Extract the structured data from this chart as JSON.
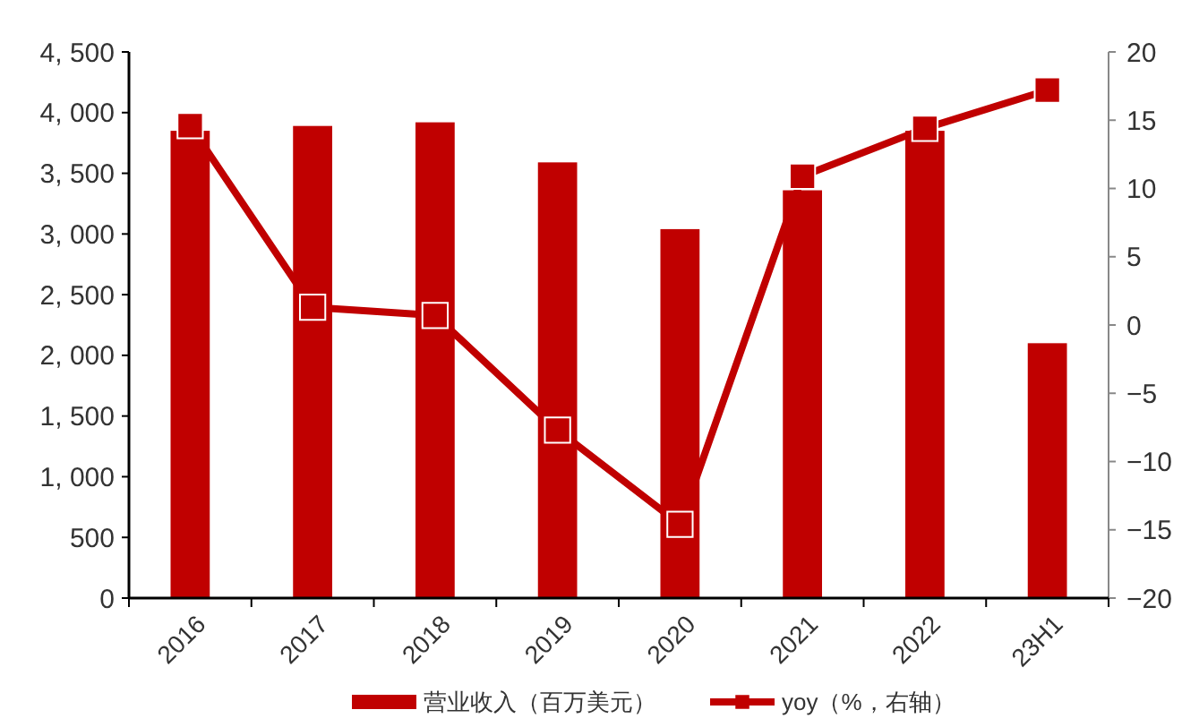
{
  "chart_data": {
    "type": "bar",
    "categories": [
      "2016",
      "2017",
      "2018",
      "2019",
      "2020",
      "2021",
      "2022",
      "23H1"
    ],
    "series": [
      {
        "name": "营业收入（百万美元）",
        "color": "#c00000",
        "values": [
          3850,
          3890,
          3920,
          3590,
          3040,
          3360,
          3850,
          2100
        ]
      },
      {
        "name": "yoy（%，右轴）",
        "type": "line",
        "axis": "y2",
        "color": "#c00000",
        "marker": "square",
        "values": [
          14.6,
          1.3,
          0.7,
          -7.7,
          -14.6,
          10.9,
          14.4,
          17.2
        ]
      }
    ],
    "ylim": [
      0,
      4500
    ],
    "yticks": [
      {
        "value": 0,
        "label": "0"
      },
      {
        "value": 500,
        "label": "500"
      },
      {
        "value": 1000,
        "label": "1, 000"
      },
      {
        "value": 1500,
        "label": "1, 500"
      },
      {
        "value": 2000,
        "label": "2, 000"
      },
      {
        "value": 2500,
        "label": "2, 500"
      },
      {
        "value": 3000,
        "label": "3, 000"
      },
      {
        "value": 3500,
        "label": "3, 500"
      },
      {
        "value": 4000,
        "label": "4, 000"
      },
      {
        "value": 4500,
        "label": "4, 500"
      }
    ],
    "y2lim": [
      -20,
      20
    ],
    "y2ticks": [
      {
        "value": -20,
        "label": "−20"
      },
      {
        "value": -15,
        "label": "−15"
      },
      {
        "value": -10,
        "label": "−10"
      },
      {
        "value": -5,
        "label": "−5"
      },
      0,
      5,
      10,
      15,
      20
    ],
    "grid": false,
    "legend": "bottom"
  }
}
